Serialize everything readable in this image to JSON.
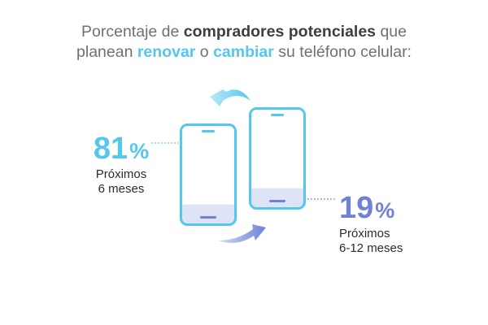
{
  "title": {
    "part1": "Porcentaje de ",
    "bold": "compradores potenciales",
    "part2": " que",
    "part3": "planean ",
    "renovar": "renovar",
    "part4": " o ",
    "cambiar": "cambiar",
    "part5": " su teléfono celular:"
  },
  "colors": {
    "cyan": "#55c6ee",
    "purple": "#6f82d8",
    "text": "#6e7077",
    "bold_text": "#3d3f45"
  },
  "icons": [
    "phone-icon",
    "cycle-arrow-icon"
  ],
  "chart_data": {
    "type": "pie",
    "categories": [
      "Próximos 6 meses",
      "Próximos 6-12 meses"
    ],
    "values": [
      81,
      19
    ],
    "unit": "%",
    "labels": [
      {
        "value": "81",
        "unit": "%",
        "line1": "Próximos",
        "line2": "6 meses"
      },
      {
        "value": "19",
        "unit": "%",
        "line1": "Próximos",
        "line2": "6-12 meses"
      }
    ]
  }
}
